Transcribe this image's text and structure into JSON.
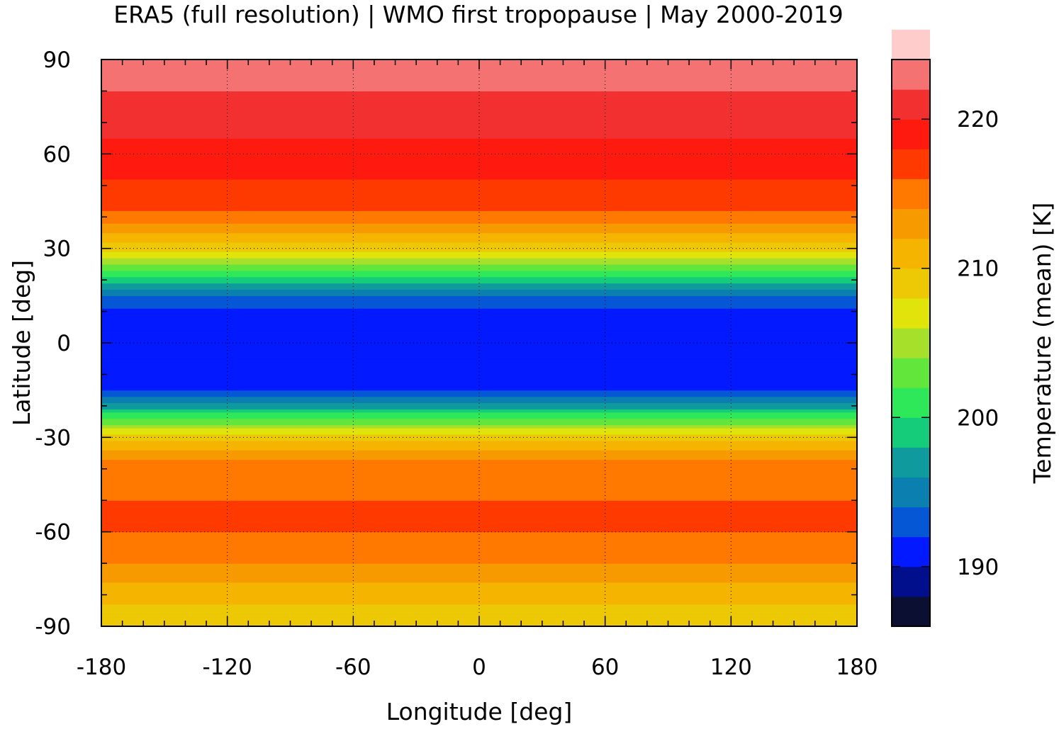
{
  "chart_data": {
    "type": "heatmap",
    "title": "ERA5 (full resolution) | WMO first tropopause | May 2000-2019",
    "xlabel": "Longitude [deg]",
    "ylabel": "Latitude [deg]",
    "xlim": [
      -180,
      180
    ],
    "ylim": [
      -90,
      90
    ],
    "x_ticks": [
      -180,
      -120,
      -60,
      0,
      60,
      120,
      180
    ],
    "y_ticks": [
      90,
      60,
      30,
      0,
      -30,
      -60,
      -90
    ],
    "grid": true,
    "colorbar": {
      "label": "Temperature (mean) [K]",
      "range": [
        186,
        224
      ],
      "step": 2,
      "ticks": [
        190,
        200,
        210,
        220
      ],
      "colors": [
        "#0b1033",
        "#020f8c",
        "#0319ff",
        "#0657d6",
        "#0a7fb0",
        "#0f9b9d",
        "#14cc7a",
        "#2ee85a",
        "#62e63c",
        "#a6e02a",
        "#e0e40a",
        "#ecc805",
        "#f4b400",
        "#f79a00",
        "#ff7800",
        "#ff3a00",
        "#ff1a10",
        "#f23030",
        "#f57272",
        "#ffcccc"
      ]
    },
    "zonal_mean_temperature_by_latitude": {
      "latitude": [
        -90,
        -80,
        -70,
        -60,
        -50,
        -40,
        -35,
        -30,
        -25,
        -20,
        -15,
        -10,
        -5,
        0,
        5,
        10,
        15,
        20,
        25,
        30,
        35,
        40,
        45,
        50,
        55,
        60,
        65,
        70,
        75,
        80,
        85,
        90
      ],
      "temperature": [
        209,
        210.5,
        214,
        216,
        216,
        215,
        213,
        209,
        203,
        197,
        192,
        190.5,
        190,
        190,
        190.5,
        191.5,
        194,
        199,
        204,
        208.5,
        212,
        215,
        217,
        217.5,
        218.5,
        219.5,
        220,
        221,
        221.5,
        222,
        223,
        223
      ]
    }
  }
}
